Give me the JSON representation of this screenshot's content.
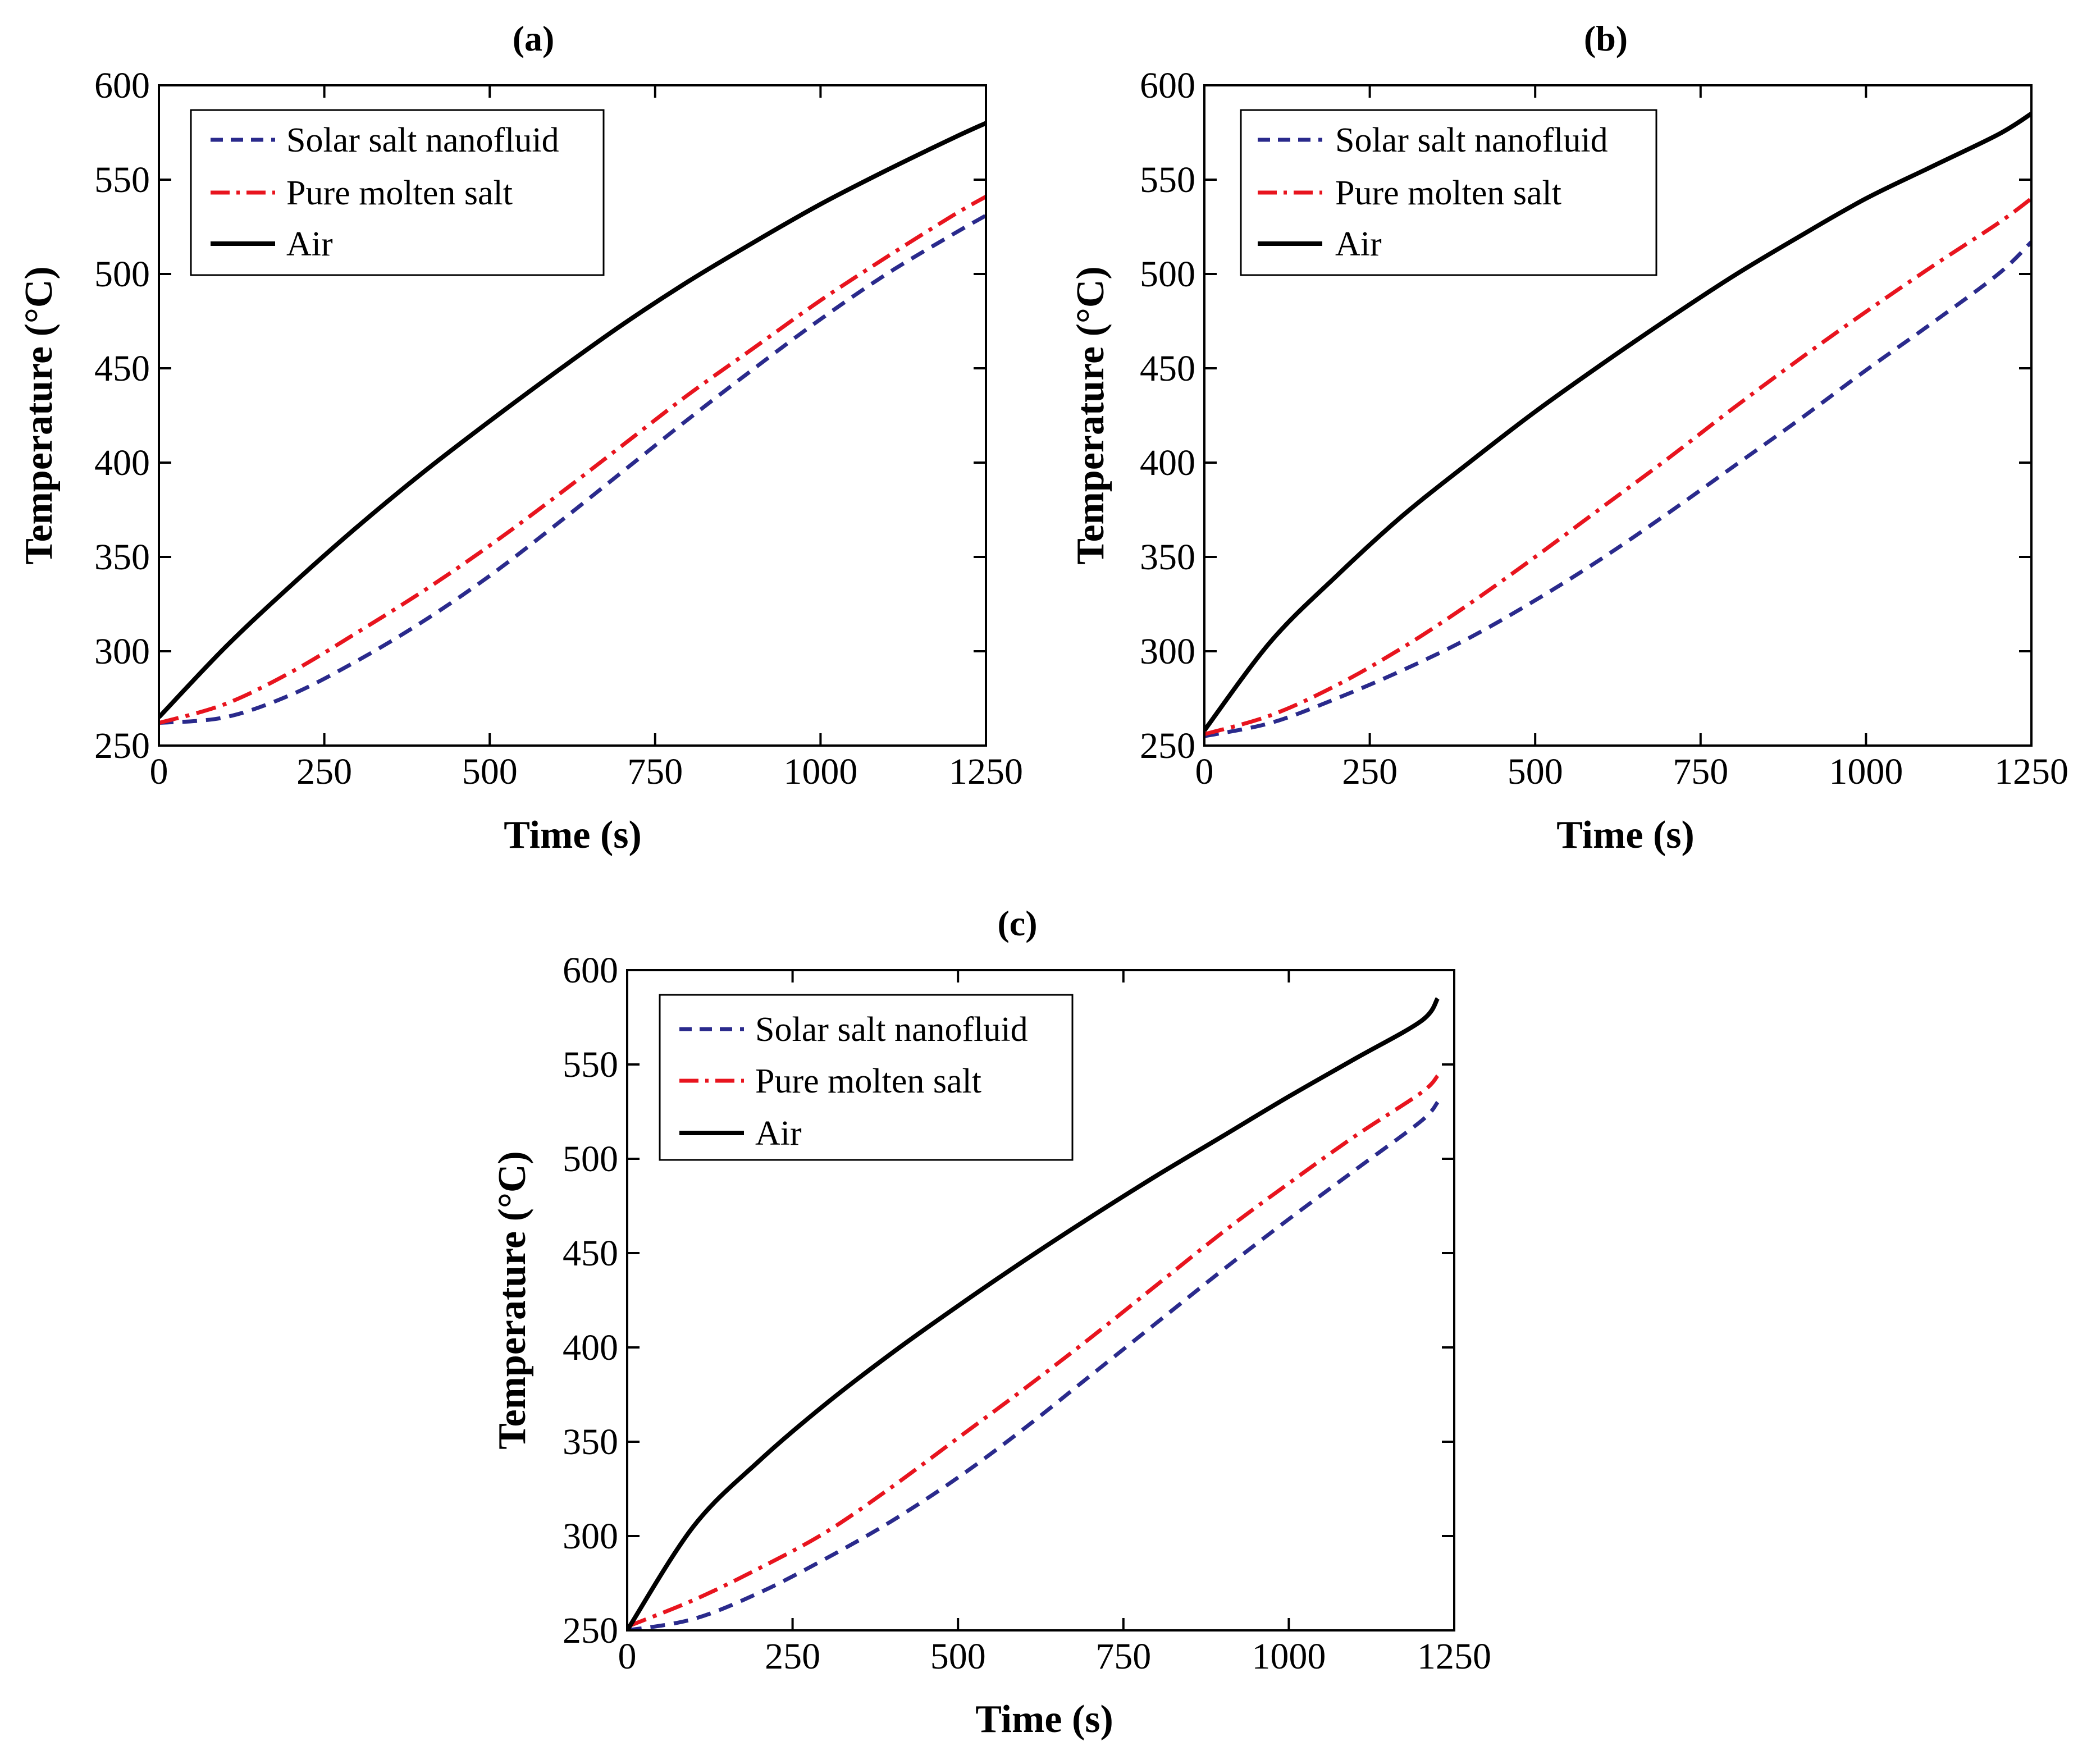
{
  "chart_data": [
    {
      "id": "a",
      "type": "line",
      "title": "(a)",
      "xlabel": "Time (s)",
      "ylabel": "Temperature (°C)",
      "xlim": [
        0,
        1250
      ],
      "ylim": [
        250,
        600
      ],
      "xticks": [
        0,
        250,
        500,
        750,
        1000,
        1250
      ],
      "yticks": [
        250,
        300,
        350,
        400,
        450,
        500,
        550,
        600
      ],
      "legend_position": "top-left",
      "x": [
        0,
        100,
        200,
        300,
        400,
        500,
        600,
        700,
        800,
        900,
        1000,
        1100,
        1200,
        1250
      ],
      "series": [
        {
          "name": "Solar salt nanofluid",
          "style": "dashed",
          "color": "#2a2a8c",
          "values": [
            262,
            265,
            277,
            295,
            316,
            340,
            367,
            395,
            423,
            450,
            476,
            500,
            521,
            531
          ]
        },
        {
          "name": "Pure molten salt",
          "style": "dash-dot",
          "color": "#e8141e",
          "values": [
            262,
            272,
            289,
            310,
            332,
            356,
            382,
            409,
            436,
            461,
            486,
            509,
            531,
            541
          ]
        },
        {
          "name": "Air",
          "style": "solid",
          "color": "#000000",
          "values": [
            265,
            302,
            335,
            366,
            395,
            422,
            448,
            473,
            496,
            517,
            537,
            555,
            572,
            580
          ]
        }
      ]
    },
    {
      "id": "b",
      "type": "line",
      "title": "(b)",
      "xlabel": "Time (s)",
      "ylabel": "Temperature (°C)",
      "xlim": [
        0,
        1250
      ],
      "ylim": [
        250,
        600
      ],
      "xticks": [
        0,
        250,
        500,
        750,
        1000,
        1250
      ],
      "yticks": [
        250,
        300,
        350,
        400,
        450,
        500,
        550,
        600
      ],
      "legend_position": "top-left",
      "x": [
        0,
        100,
        200,
        300,
        400,
        500,
        600,
        700,
        800,
        900,
        1000,
        1100,
        1200,
        1250
      ],
      "series": [
        {
          "name": "Solar salt nanofluid",
          "style": "dashed",
          "color": "#2a2a8c",
          "values": [
            255,
            262,
            275,
            290,
            307,
            327,
            349,
            373,
            398,
            423,
            449,
            474,
            500,
            517
          ]
        },
        {
          "name": "Pure molten salt",
          "style": "dash-dot",
          "color": "#e8141e",
          "values": [
            256,
            266,
            282,
            302,
            325,
            350,
            376,
            402,
            429,
            455,
            480,
            504,
            527,
            540
          ]
        },
        {
          "name": "Air",
          "style": "solid",
          "color": "#000000",
          "values": [
            258,
            305,
            340,
            372,
            400,
            427,
            452,
            476,
            499,
            520,
            540,
            557,
            574,
            585
          ]
        }
      ]
    },
    {
      "id": "c",
      "type": "line",
      "title": "(c)",
      "xlabel": "Time (s)",
      "ylabel": "Temperature (°C)",
      "xlim": [
        0,
        1250
      ],
      "ylim": [
        250,
        600
      ],
      "xticks": [
        0,
        250,
        500,
        750,
        1000,
        1250
      ],
      "yticks": [
        250,
        300,
        350,
        400,
        450,
        500,
        550,
        600
      ],
      "legend_position": "top-left",
      "x": [
        0,
        100,
        200,
        300,
        400,
        500,
        600,
        700,
        800,
        900,
        1000,
        1100,
        1200,
        1225
      ],
      "series": [
        {
          "name": "Solar salt nanofluid",
          "style": "dashed",
          "color": "#2a2a8c",
          "values": [
            250,
            256,
            270,
            288,
            308,
            331,
            357,
            385,
            413,
            441,
            468,
            494,
            520,
            530
          ]
        },
        {
          "name": "Pure molten salt",
          "style": "dash-dot",
          "color": "#e8141e",
          "values": [
            252,
            266,
            283,
            302,
            326,
            352,
            378,
            405,
            433,
            461,
            487,
            512,
            535,
            544
          ]
        },
        {
          "name": "Air",
          "style": "solid",
          "color": "#000000",
          "values": [
            250,
            305,
            340,
            370,
            397,
            422,
            446,
            469,
            491,
            512,
            533,
            553,
            573,
            585
          ]
        }
      ]
    }
  ]
}
